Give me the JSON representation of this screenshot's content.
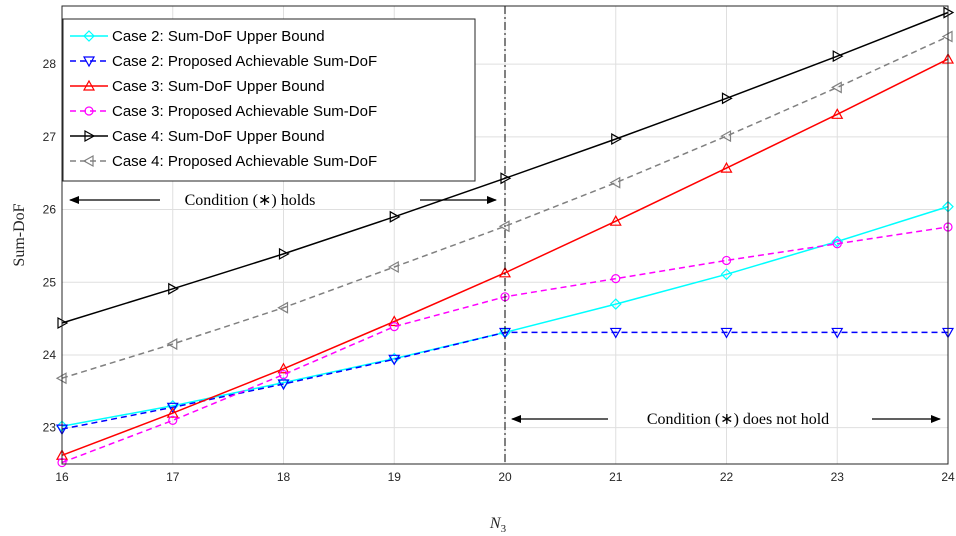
{
  "chart_data": {
    "type": "line",
    "xlabel": "N",
    "xlabel_sub": "3",
    "ylabel": "Sum-DoF",
    "xlim": [
      16,
      24
    ],
    "ylim": [
      22.5,
      28.8
    ],
    "xticks": [
      16,
      17,
      18,
      19,
      20,
      21,
      22,
      23,
      24
    ],
    "yticks": [
      23,
      24,
      25,
      26,
      27,
      28
    ],
    "grid": true,
    "legend_position": "top-left",
    "x": [
      16,
      17,
      18,
      19,
      20,
      21,
      22,
      23,
      24
    ],
    "series": [
      {
        "name": "Case 2: Sum-DoF Upper Bound",
        "color": "#00FFFF",
        "dash": "solid",
        "marker": "diamond",
        "values": [
          23.02,
          23.3,
          23.62,
          23.95,
          24.31,
          24.7,
          25.11,
          25.56,
          26.04
        ]
      },
      {
        "name": "Case 2: Proposed Achievable Sum-DoF",
        "color": "#0000FF",
        "dash": "dashed",
        "marker": "triangle-down",
        "values": [
          22.98,
          23.28,
          23.6,
          23.94,
          24.31,
          24.31,
          24.31,
          24.31,
          24.31
        ]
      },
      {
        "name": "Case 3: Sum-DoF Upper Bound",
        "color": "#FF0000",
        "dash": "solid",
        "marker": "triangle-up",
        "values": [
          22.62,
          23.2,
          23.81,
          24.46,
          25.13,
          25.84,
          26.57,
          27.31,
          28.07
        ]
      },
      {
        "name": "Case 3: Proposed Achievable Sum-DoF",
        "color": "#FF00FF",
        "dash": "dashed",
        "marker": "circle",
        "values": [
          22.52,
          23.1,
          23.73,
          24.39,
          24.8,
          25.05,
          25.3,
          25.53,
          25.76
        ]
      },
      {
        "name": "Case 4: Sum-DoF Upper Bound",
        "color": "#000000",
        "dash": "solid",
        "marker": "triangle-right",
        "values": [
          24.44,
          24.91,
          25.39,
          25.9,
          26.43,
          26.97,
          27.53,
          28.11,
          28.71
        ]
      },
      {
        "name": "Case 4: Proposed Achievable Sum-DoF",
        "color": "#808080",
        "dash": "dashed",
        "marker": "triangle-left",
        "values": [
          23.68,
          24.15,
          24.65,
          25.21,
          25.77,
          26.37,
          27.01,
          27.68,
          28.38
        ]
      }
    ],
    "vertical_line": {
      "x": 20,
      "style": "dash-dot",
      "color": "#000000"
    },
    "annotations": [
      {
        "text": "Condition (∗) holds",
        "region": "left"
      },
      {
        "text": "Condition (∗) does not hold",
        "region": "right"
      }
    ]
  }
}
